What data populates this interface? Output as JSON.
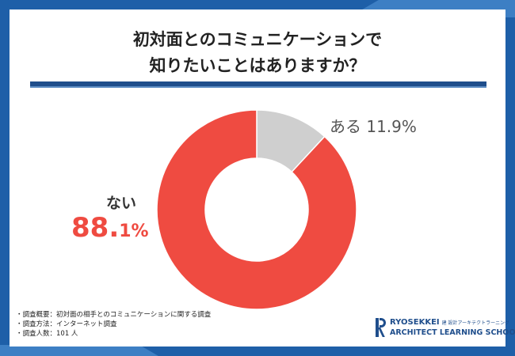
{
  "title": {
    "line1": "初対面とのコミュニケーションで",
    "line2": "知りたいことはありますか？"
  },
  "colors": {
    "background": "#1e5fa8",
    "accent_stripe": "#3d7fc4",
    "rule": "#1f4e8c",
    "no_slice": "#ef4b41",
    "yes_slice": "#cfcfcf"
  },
  "chart_data": {
    "type": "pie",
    "donut": true,
    "start_angle_deg": 0,
    "direction": "clockwise",
    "slices": [
      {
        "label": "ある",
        "value": 11.9,
        "value_label": "11.9%",
        "color": "#cfcfcf"
      },
      {
        "label": "ない",
        "value": 88.1,
        "value_label": "88.1%",
        "color": "#ef4b41"
      }
    ],
    "annotations": {
      "yes": "ある 11.9%",
      "no_name": "ない",
      "no_value_big": "88.",
      "no_value_small": "1%"
    }
  },
  "notes": [
    "・調査概要：初対面の相手とのコミュニケーションに関する調査",
    "・調査方法：インターネット調査",
    "・調査人数：101 人"
  ],
  "logo": {
    "brand": "RYOSEKKEI",
    "subtitle": "建 設計アーキテクトラーニング",
    "school": "ARCHITECT LEARNING SCHOOL",
    "icon": "r-monogram-icon"
  }
}
